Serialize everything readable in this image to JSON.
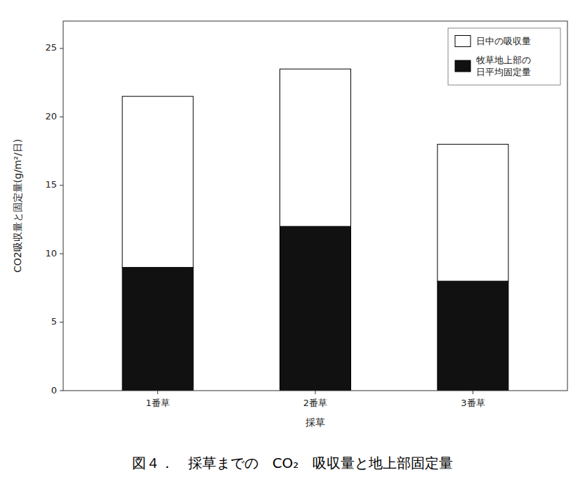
{
  "chart_data": {
    "type": "bar",
    "stacked": true,
    "title": "図４．　採草までの　CO₂　吸収量と地上部固定量",
    "xlabel": "採草",
    "ylabel": "CO2吸収量と固定量(g/m²/日)",
    "categories": [
      "1番草",
      "2番草",
      "3番草"
    ],
    "series": [
      {
        "name": "牧草地上部の\n日平均固定量",
        "color": "#111111",
        "values": [
          9.0,
          12.0,
          8.0
        ]
      },
      {
        "name": "日中の吸収量",
        "color": "#ffffff",
        "values": [
          12.5,
          11.5,
          10.0
        ]
      }
    ],
    "ylim": [
      0,
      27
    ],
    "yticks": [
      0,
      5,
      10,
      15,
      20,
      25
    ],
    "grid": false,
    "legend": "upper right"
  }
}
